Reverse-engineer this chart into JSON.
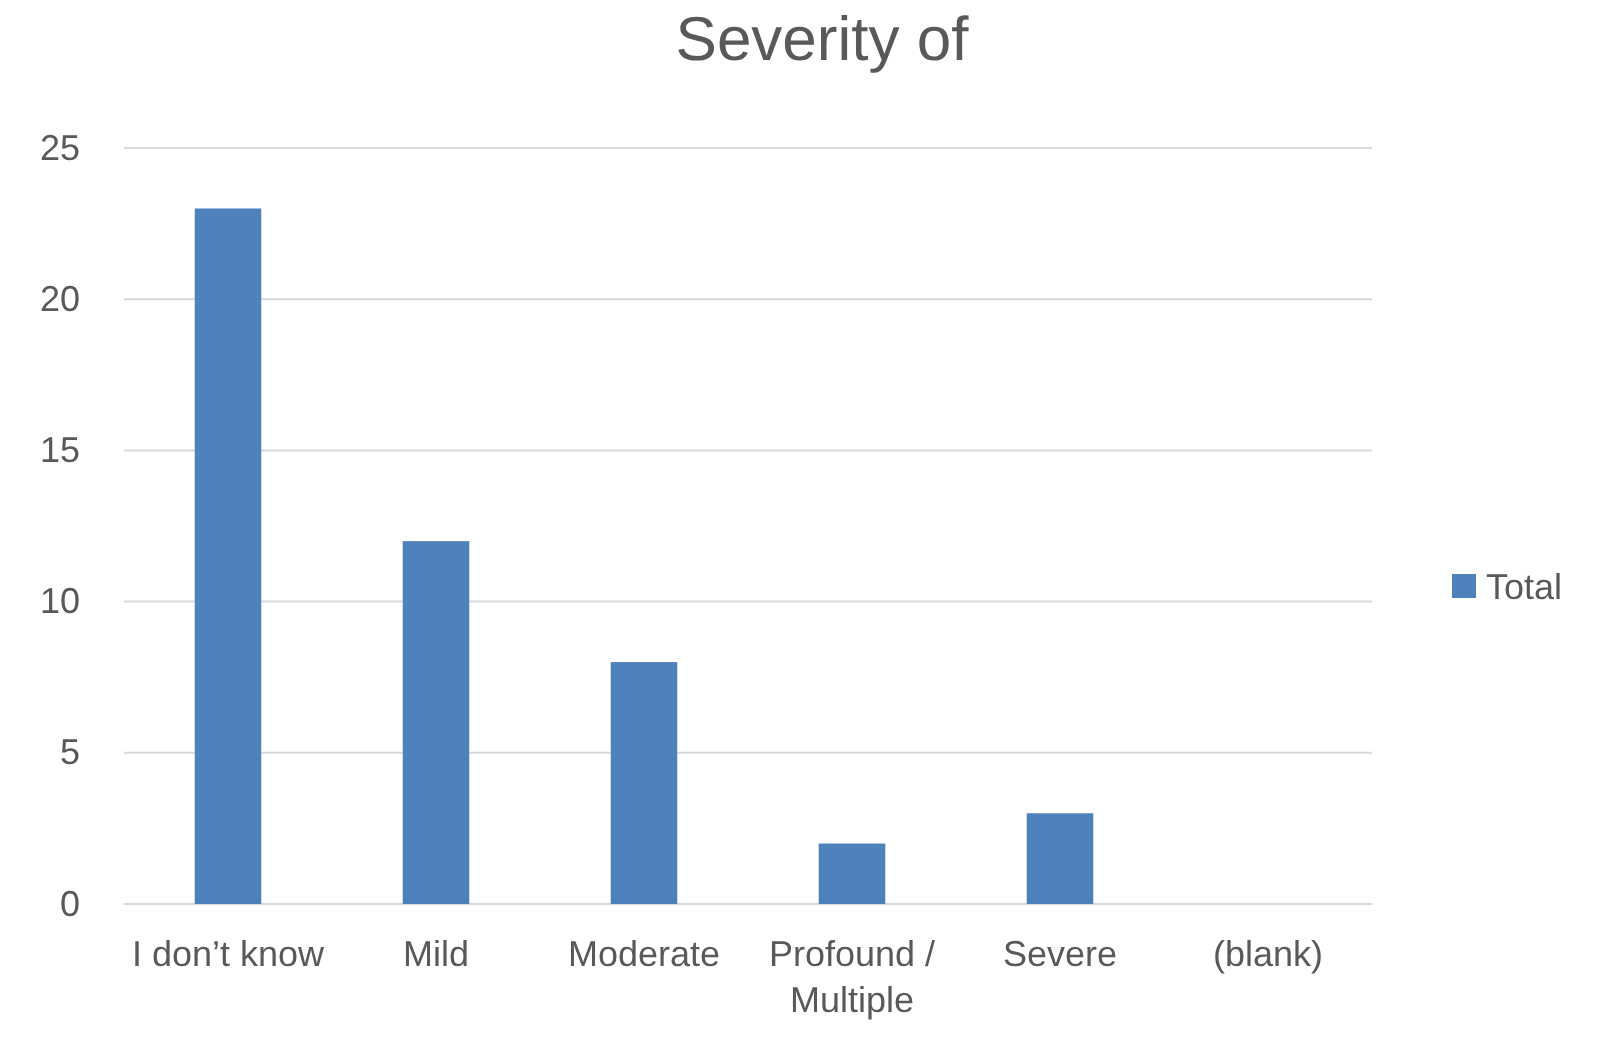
{
  "chart_data": {
    "type": "bar",
    "title": "Severity of",
    "categories": [
      "I don’t know",
      "Mild",
      "Moderate",
      "Profound / Multiple",
      "Severe",
      "(blank)"
    ],
    "series": [
      {
        "name": "Total",
        "color": "#4f81bd",
        "values": [
          23,
          12,
          8,
          2,
          3,
          null
        ]
      }
    ],
    "ylim": [
      0,
      25
    ],
    "yticks": [
      0,
      5,
      10,
      15,
      20,
      25
    ],
    "grid": "y",
    "legend": "right"
  }
}
